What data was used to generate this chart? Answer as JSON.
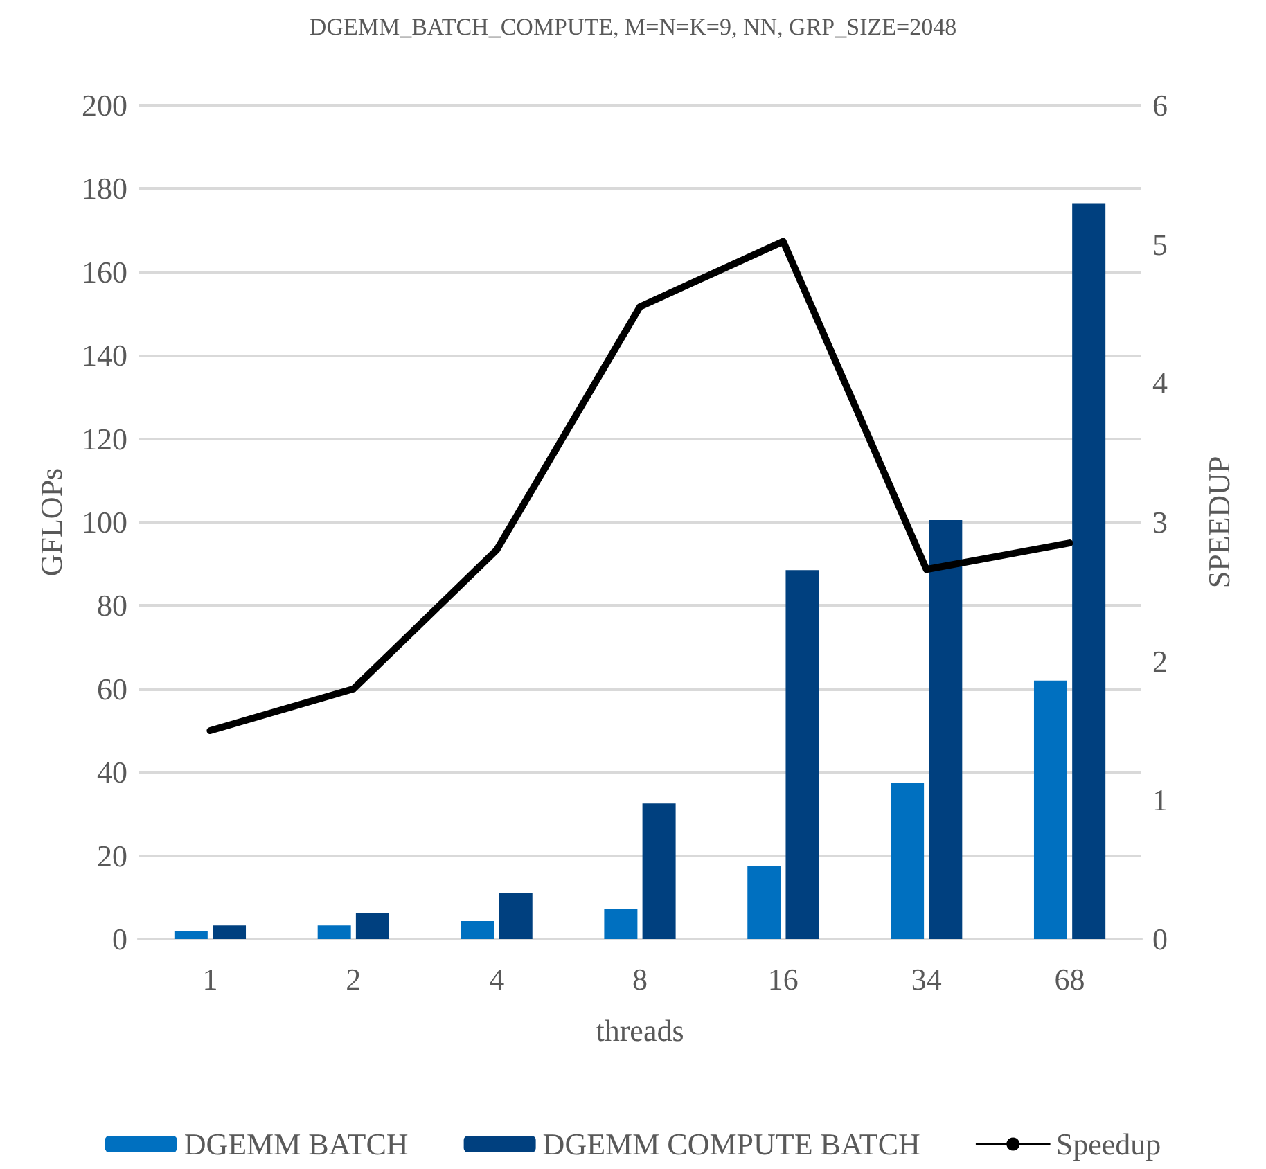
{
  "chart_data": {
    "type": "bar",
    "title": "DGEMM_BATCH_COMPUTE, M=N=K=9, NN, GRP_SIZE=2048",
    "xlabel": "threads",
    "ylabel": "GFLOPs",
    "y2label": "SPEEDUP",
    "categories": [
      "1",
      "2",
      "4",
      "8",
      "16",
      "34",
      "68"
    ],
    "series": [
      {
        "name": "DGEMM BATCH",
        "color": "#0070c0",
        "values": [
          2,
          3.3,
          4.3,
          7.3,
          17.5,
          37.5,
          62
        ]
      },
      {
        "name": "DGEMM COMPUTE BATCH",
        "color": "#00407f",
        "values": [
          3.3,
          6.3,
          11,
          32.5,
          88.5,
          100.5,
          176.5
        ]
      },
      {
        "name": "Speedup",
        "type": "line",
        "axis": "y2",
        "color": "#000000",
        "values": [
          1.5,
          1.8,
          2.8,
          4.55,
          5.02,
          2.66,
          2.85
        ]
      }
    ],
    "ylim": [
      0,
      200
    ],
    "yticks": [
      0,
      20,
      40,
      60,
      80,
      100,
      120,
      140,
      160,
      180,
      200
    ],
    "y2lim": [
      0,
      6
    ],
    "y2ticks": [
      0,
      1,
      2,
      3,
      4,
      5,
      6
    ],
    "grid": "y",
    "legend": "bottom",
    "marker": "none",
    "line_style": "solid"
  }
}
